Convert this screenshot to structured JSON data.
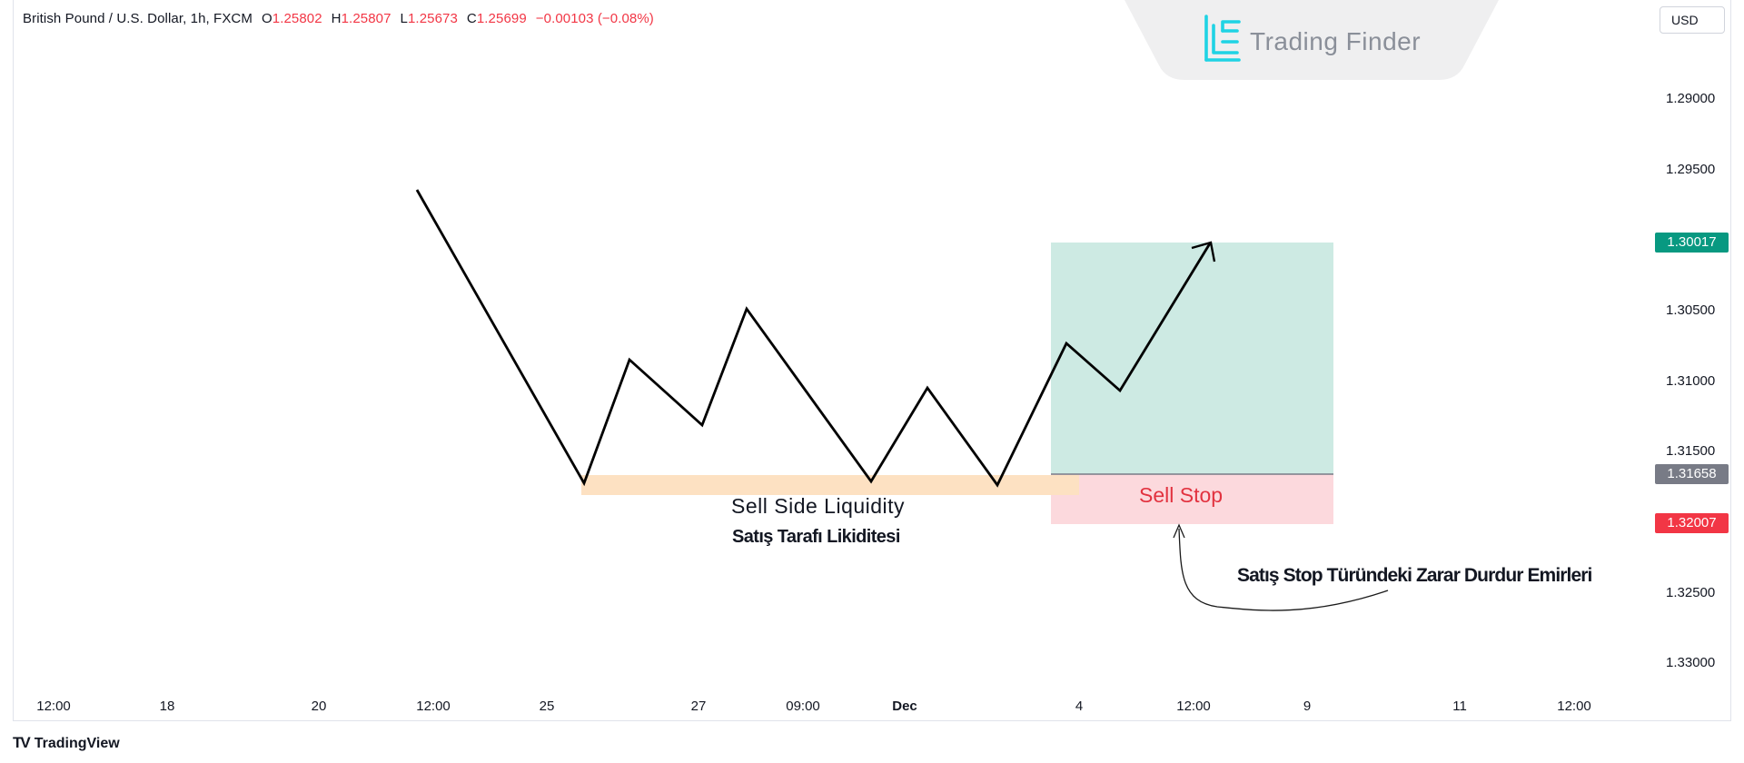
{
  "symbol_header": {
    "title": "British Pound / U.S. Dollar, 1h, FXCM",
    "open_label": "O",
    "open_value": "1.25802",
    "high_label": "H",
    "high_value": "1.25807",
    "low_label": "L",
    "low_value": "1.25673",
    "close_label": "C",
    "close_value": "1.25699",
    "change": "−0.00103 (−0.08%)"
  },
  "currency_button": {
    "label": "USD"
  },
  "brand": {
    "name": "Trading Finder",
    "logo_icon": "trading-finder-logo-icon"
  },
  "price_axis": {
    "labels": [
      "1.29000",
      "1.29500",
      "1.30500",
      "1.31000",
      "1.31500",
      "1.32500",
      "1.33000"
    ],
    "tags": [
      {
        "value": "1.30017",
        "color": "#089981"
      },
      {
        "value": "1.31658",
        "color": "#787b86"
      },
      {
        "value": "1.32007",
        "color": "#f23645"
      }
    ]
  },
  "time_axis": {
    "labels": [
      "12:00",
      "18",
      "20",
      "12:00",
      "25",
      "27",
      "09:00",
      "Dec",
      "4",
      "12:00",
      "9",
      "11",
      "12:00"
    ]
  },
  "annotations": {
    "sell_side_liquidity": "Sell Side Liquidity",
    "sell_side_liquidity_tr": "Satış Tarafı Likiditesi",
    "sell_stop": "Sell Stop",
    "stop_orders_tr": "Satış Stop Türündeki Zarar Durdur Emirleri"
  },
  "colors": {
    "target_zone": "#cdeae3",
    "stop_zone": "#fcd9dd",
    "liquidity_zone": "#fde1c2",
    "price_path": "#000000",
    "negative": "#f23645"
  },
  "footer": {
    "logo_text": "TradingView",
    "logo_icon": "tradingview-logo-icon"
  }
}
